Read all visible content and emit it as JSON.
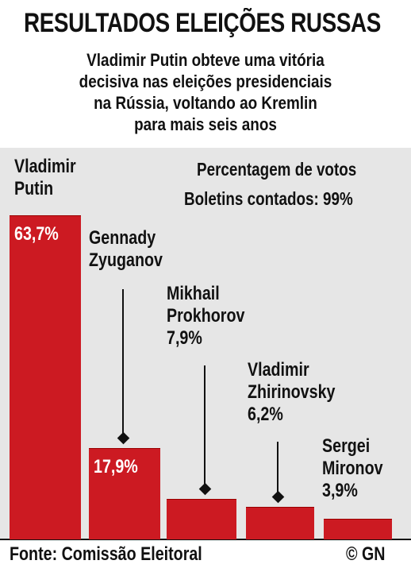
{
  "chart_data": {
    "type": "bar",
    "title": "RESULTADOS ELEIÇÕES RUSSAS",
    "subtitle": "Vladimir Putin obteve uma vitória decisiva nas eleições presidenciais na Rússia, voltando ao Kremlin para mais seis anos",
    "unit_label": "Percentagem de votos",
    "counted_label": "Boletins contados: 99%",
    "categories": [
      "Vladimir Putin",
      "Gennady Zyuganov",
      "Mikhail Prokhorov",
      "Vladimir Zhirinovsky",
      "Sergei Mironov"
    ],
    "values": [
      63.7,
      17.9,
      7.9,
      6.2,
      3.9
    ],
    "value_labels": [
      "63,7%",
      "17,9%",
      "7,9%",
      "6,2%",
      "3,9%"
    ],
    "color": "#cc1a22",
    "source": "Fonte: Comissão Eleitoral",
    "credit": "© GN"
  }
}
